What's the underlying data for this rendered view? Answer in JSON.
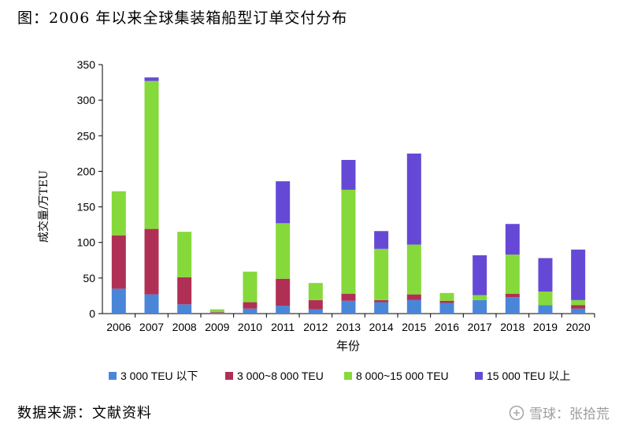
{
  "figure": {
    "title": "图：2006 年以来全球集装箱船型订单交付分布",
    "source": "数据来源：文献资料",
    "watermark": "雪球：张拾荒"
  },
  "chart_data": {
    "type": "bar",
    "stacked": true,
    "categories": [
      "2006",
      "2007",
      "2008",
      "2009",
      "2010",
      "2011",
      "2012",
      "2013",
      "2014",
      "2015",
      "2016",
      "2017",
      "2018",
      "2019",
      "2020"
    ],
    "series": [
      {
        "name": "3 000 TEU 以下",
        "color": "#4a86d8",
        "values": [
          35,
          27,
          13,
          1,
          7,
          11,
          6,
          18,
          16,
          19,
          15,
          19,
          23,
          12,
          7
        ]
      },
      {
        "name": "3 000~8 000 TEU",
        "color": "#b03055",
        "values": [
          75,
          92,
          38,
          1,
          9,
          38,
          13,
          10,
          3,
          8,
          3,
          0,
          5,
          0,
          5
        ]
      },
      {
        "name": "8 000~15 000 TEU",
        "color": "#86d93a",
        "values": [
          62,
          208,
          64,
          4,
          43,
          78,
          24,
          146,
          72,
          70,
          11,
          7,
          55,
          19,
          7
        ]
      },
      {
        "name": "15 000 TEU 以上",
        "color": "#6549d6",
        "values": [
          0,
          5,
          0,
          0,
          0,
          59,
          0,
          42,
          25,
          128,
          0,
          56,
          43,
          47,
          71
        ]
      }
    ],
    "title": "",
    "xlabel": "年份",
    "ylabel": "成交量/万TEU",
    "ylim": [
      0,
      350
    ],
    "yticks": [
      0,
      50,
      100,
      150,
      200,
      250,
      300,
      350
    ],
    "grid": false,
    "legend_position": "bottom"
  }
}
